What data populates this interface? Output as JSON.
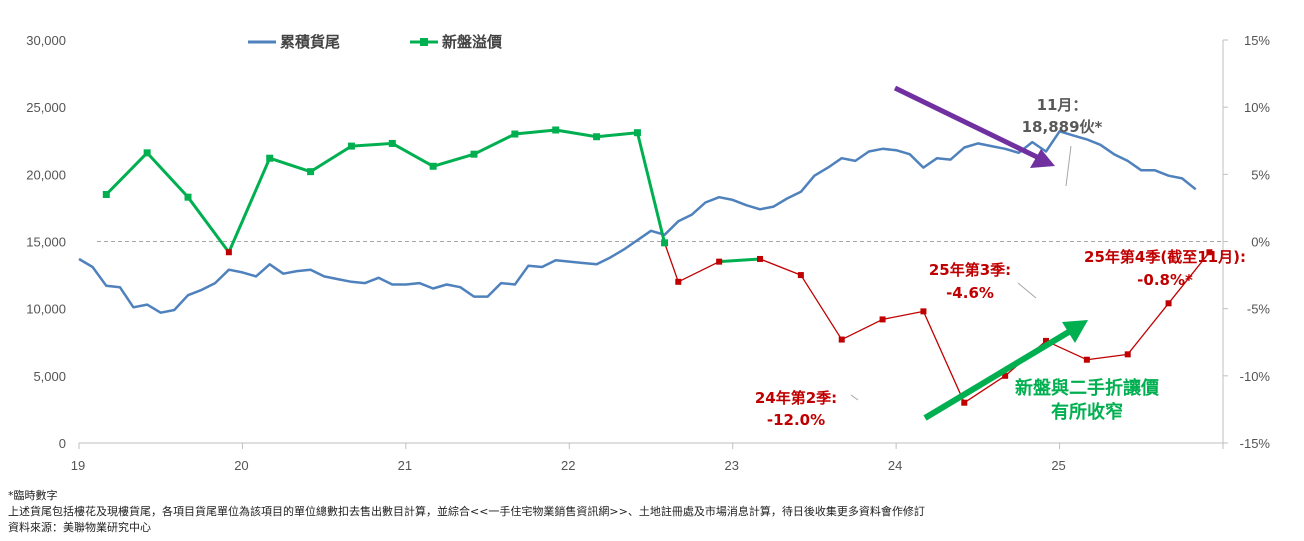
{
  "chart_data": {
    "type": "line",
    "x_axis": {
      "tick_labels": [
        "19",
        "20",
        "21",
        "22",
        "23",
        "24",
        "25"
      ],
      "range": [
        2019.0,
        2026.0
      ]
    },
    "y_left": {
      "range": [
        0,
        30000
      ],
      "tick_labels": [
        "0",
        "5,000",
        "10,000",
        "15,000",
        "20,000",
        "25,000",
        "30,000"
      ]
    },
    "y_right": {
      "range": [
        -15,
        15
      ],
      "unit": "%",
      "tick_labels": [
        "-15%",
        "-10%",
        "-5%",
        "0%",
        "5%",
        "10%",
        "15%"
      ]
    },
    "zero_reference_line": true,
    "legend": {
      "placement": "top-left",
      "entries": [
        "累積貨尾",
        "新盤溢價"
      ]
    },
    "series": [
      {
        "name": "累積貨尾",
        "axis": "left",
        "color": "#4F81BD",
        "x": [
          2019.0,
          2019.083,
          2019.167,
          2019.25,
          2019.333,
          2019.417,
          2019.5,
          2019.583,
          2019.667,
          2019.75,
          2019.833,
          2019.917,
          2020.0,
          2020.083,
          2020.167,
          2020.25,
          2020.333,
          2020.417,
          2020.5,
          2020.583,
          2020.667,
          2020.75,
          2020.833,
          2020.917,
          2021.0,
          2021.083,
          2021.167,
          2021.25,
          2021.333,
          2021.417,
          2021.5,
          2021.583,
          2021.667,
          2021.75,
          2021.833,
          2021.917,
          2022.0,
          2022.083,
          2022.167,
          2022.25,
          2022.333,
          2022.417,
          2022.5,
          2022.583,
          2022.667,
          2022.75,
          2022.833,
          2022.917,
          2023.0,
          2023.083,
          2023.167,
          2023.25,
          2023.333,
          2023.417,
          2023.5,
          2023.583,
          2023.667,
          2023.75,
          2023.833,
          2023.917,
          2024.0,
          2024.083,
          2024.167,
          2024.25,
          2024.333,
          2024.417,
          2024.5,
          2024.583,
          2024.667,
          2024.75,
          2024.833,
          2024.917,
          2025.0,
          2025.083,
          2025.167,
          2025.25,
          2025.333,
          2025.417,
          2025.5,
          2025.583,
          2025.667,
          2025.75,
          2025.833
        ],
        "values": [
          13700,
          13100,
          11700,
          11600,
          10100,
          10300,
          9700,
          9900,
          11000,
          11400,
          11900,
          12900,
          12700,
          12400,
          13300,
          12600,
          12800,
          12900,
          12400,
          12200,
          12000,
          11900,
          12300,
          11800,
          11800,
          11900,
          11500,
          11800,
          11600,
          10900,
          10900,
          11900,
          11800,
          13200,
          13100,
          13600,
          13500,
          13400,
          13300,
          13800,
          14400,
          15100,
          15800,
          15500,
          16500,
          17000,
          17900,
          18300,
          18100,
          17700,
          17400,
          17600,
          18200,
          18700,
          19900,
          20500,
          21200,
          21000,
          21700,
          21900,
          21800,
          21500,
          20500,
          21200,
          21100,
          22000,
          22300,
          22100,
          21900,
          21600,
          22400,
          21700,
          23200,
          22900,
          22600,
          22200,
          21500,
          21000,
          20300,
          20300,
          19900,
          19700,
          18889
        ]
      },
      {
        "name": "新盤溢價",
        "axis": "right",
        "color": "#00B050",
        "marker": "square",
        "x": [
          2019.167,
          2019.417,
          2019.667,
          2019.917,
          2020.167,
          2020.417,
          2020.667,
          2020.917,
          2021.167,
          2021.417,
          2021.667,
          2021.917,
          2022.167,
          2022.417,
          2022.583,
          2022.667,
          2022.917,
          2023.167,
          2023.417,
          2023.667,
          2023.917,
          2024.167,
          2024.417,
          2024.667,
          2024.917,
          2025.167,
          2025.417,
          2025.667,
          2025.917
        ],
        "values": [
          3.5,
          6.6,
          3.3,
          -0.8,
          6.2,
          5.2,
          7.1,
          7.3,
          5.6,
          6.5,
          8.0,
          8.3,
          7.8,
          8.1,
          -0.1,
          -3.0,
          -1.5,
          -1.3,
          -2.5,
          -7.3,
          -5.8,
          -5.2,
          -12.0,
          -10.0,
          -7.4,
          -8.8,
          -8.4,
          -4.6,
          -0.8
        ],
        "negative_color": "#C00000"
      }
    ],
    "annotations": [
      {
        "id": "nov",
        "lines": [
          "11月：",
          "18,889伙*"
        ],
        "color": "#595959"
      },
      {
        "id": "q2_24",
        "lines": [
          "24年第2季:",
          "-12.0%"
        ],
        "color": "#C00000"
      },
      {
        "id": "q3_25",
        "lines": [
          "25年第3季:",
          "-4.6%"
        ],
        "color": "#C00000"
      },
      {
        "id": "q4_25",
        "lines": [
          "25年第4季(截至11月):",
          "-0.8%*"
        ],
        "color": "#C00000"
      },
      {
        "id": "narrowing",
        "lines": [
          "新盤與二手折讓價",
          "有所收窄"
        ],
        "color": "#00B050"
      }
    ],
    "arrows": [
      {
        "id": "down-arrow",
        "color": "#7030A0"
      },
      {
        "id": "up-arrow",
        "color": "#00B050"
      }
    ]
  },
  "notes": [
    "*臨時數字",
    "上述貨尾包括樓花及現樓貨尾，各項目貨尾單位為該項目的單位總數扣去售出數目計算，並綜合<<一手住宅物業銷售資訊網>>、土地註冊處及市場消息計算，待日後收集更多資料會作修訂",
    "資料來源：美聯物業研究中心"
  ]
}
